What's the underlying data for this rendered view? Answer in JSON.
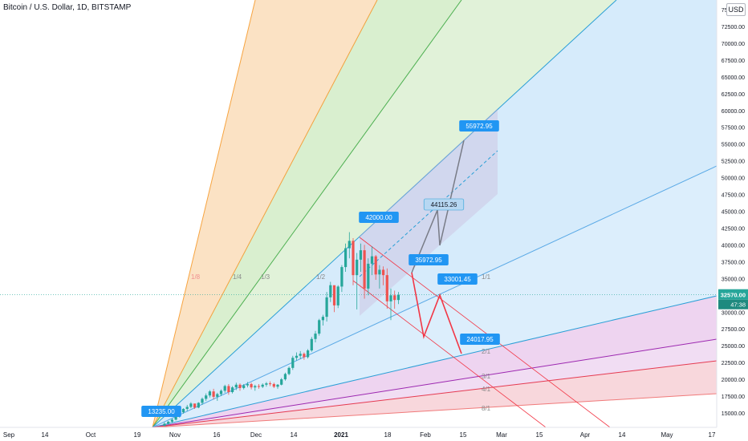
{
  "header": {
    "symbol_title": "Bitcoin / U.S. Dollar, 1D, BITSTAMP"
  },
  "currency_badge": "USD",
  "colors": {
    "fan_orange": "#fbe2c4",
    "fan_green": "#d9efcf",
    "fan_blue": "#d6ebfb",
    "fan_purple": "#eed4f0",
    "fan_pink": "#f8d7dc",
    "main_line": "#2a9fd6",
    "label_bg": "#2196f3",
    "red": "#f23645",
    "grey": "#787b86",
    "candle_up": "#26a69a",
    "candle_down": "#ef5350",
    "price_tag": "#26a69a"
  },
  "chart_data": {
    "type": "candlestick",
    "title": "Bitcoin / U.S. Dollar, 1D, BITSTAMP",
    "y_unit": "USD",
    "ylim": [
      13500,
      76500
    ],
    "y_ticks": [
      "15000.00",
      "17500.00",
      "20000.00",
      "22500.00",
      "25000.00",
      "27500.00",
      "30000.00",
      "32500.00",
      "35000.00",
      "37500.00",
      "40000.00",
      "42500.00",
      "45000.00",
      "47500.00",
      "50000.00",
      "52500.00",
      "55000.00",
      "57500.00",
      "60000.00",
      "62500.00",
      "65000.00",
      "67500.00",
      "70000.00",
      "72500.00",
      "75000.00"
    ],
    "x_ticks": [
      "Sep",
      "14",
      "Oct",
      "19",
      "Nov",
      "16",
      "Dec",
      "14",
      "2021",
      "18",
      "Feb",
      "15",
      "Mar",
      "15",
      "Apr",
      "14",
      "May",
      "17"
    ],
    "gann_fan_labels": [
      "1/8",
      "1/4",
      "1/3",
      "1/2",
      "1/1",
      "2/1",
      "3/1",
      "4/1",
      "8/1"
    ],
    "price_labels": {
      "anchor": "13235.00",
      "peak": "42000.00",
      "target_up": "55972.95",
      "mid_up": "44115.26",
      "mid_level": "35972.95",
      "mid_down": "33001.45",
      "target_down": "24017.95"
    },
    "last_price": "32570.00",
    "countdown": "47:38",
    "candles": [
      [
        13100,
        13600,
        13000,
        13400
      ],
      [
        13400,
        13800,
        13200,
        13700
      ],
      [
        13700,
        14200,
        13500,
        14000
      ],
      [
        14000,
        14600,
        13900,
        14500
      ],
      [
        14500,
        15300,
        14300,
        15100
      ],
      [
        15100,
        15700,
        14900,
        15600
      ],
      [
        15600,
        16200,
        15300,
        15900
      ],
      [
        15900,
        16600,
        15700,
        16400
      ],
      [
        16400,
        16300,
        15600,
        15800
      ],
      [
        15800,
        16600,
        15700,
        16500
      ],
      [
        16500,
        17300,
        16200,
        17100
      ],
      [
        17100,
        17900,
        16800,
        17600
      ],
      [
        17600,
        18400,
        17300,
        18200
      ],
      [
        18200,
        18600,
        17000,
        17400
      ],
      [
        17400,
        18000,
        16800,
        17800
      ],
      [
        17800,
        18500,
        17500,
        18300
      ],
      [
        18300,
        19200,
        18000,
        19000
      ],
      [
        19000,
        19300,
        17700,
        18100
      ],
      [
        18100,
        19000,
        17900,
        18800
      ],
      [
        18800,
        19500,
        18400,
        19200
      ],
      [
        19200,
        19400,
        18300,
        18700
      ],
      [
        18700,
        19300,
        18500,
        19100
      ],
      [
        19100,
        19600,
        18800,
        19300
      ],
      [
        19300,
        19500,
        18500,
        18800
      ],
      [
        18800,
        19200,
        18300,
        19000
      ],
      [
        19000,
        19300,
        18600,
        18900
      ],
      [
        18900,
        19400,
        18700,
        19200
      ],
      [
        19200,
        19600,
        18900,
        19400
      ],
      [
        19400,
        19700,
        19000,
        19300
      ],
      [
        19300,
        19500,
        18700,
        18900
      ],
      [
        18900,
        19300,
        18600,
        19200
      ],
      [
        19200,
        20200,
        19100,
        20000
      ],
      [
        20000,
        21000,
        19800,
        20800
      ],
      [
        20800,
        21900,
        20600,
        21700
      ],
      [
        21700,
        23500,
        21400,
        23200
      ],
      [
        23200,
        24000,
        22800,
        23500
      ],
      [
        23500,
        24200,
        23000,
        23800
      ],
      [
        23800,
        24000,
        22900,
        23300
      ],
      [
        23300,
        24500,
        23100,
        24300
      ],
      [
        24300,
        26300,
        24100,
        26000
      ],
      [
        26000,
        27200,
        25500,
        26800
      ],
      [
        26800,
        29000,
        26500,
        28800
      ],
      [
        28800,
        29600,
        28000,
        29300
      ],
      [
        29300,
        33000,
        28600,
        32200
      ],
      [
        32200,
        34500,
        31500,
        34000
      ],
      [
        34000,
        33800,
        30000,
        31000
      ],
      [
        31000,
        34000,
        30600,
        33800
      ],
      [
        33800,
        37000,
        33000,
        36700
      ],
      [
        36700,
        40200,
        36000,
        39500
      ],
      [
        39500,
        41900,
        38000,
        40600
      ],
      [
        40600,
        41000,
        34000,
        35500
      ],
      [
        35500,
        38800,
        30400,
        37800
      ],
      [
        37800,
        40200,
        36000,
        39200
      ],
      [
        39200,
        40000,
        32000,
        33500
      ],
      [
        33500,
        38000,
        32500,
        37200
      ],
      [
        37200,
        39800,
        35500,
        38300
      ],
      [
        38300,
        38500,
        34800,
        35600
      ],
      [
        35600,
        37000,
        33500,
        36300
      ],
      [
        36300,
        36800,
        34000,
        35500
      ],
      [
        35500,
        36500,
        30500,
        31600
      ],
      [
        31600,
        33500,
        28800,
        32500
      ],
      [
        32500,
        33200,
        30500,
        31800
      ],
      [
        31800,
        33000,
        31200,
        32570
      ]
    ]
  }
}
